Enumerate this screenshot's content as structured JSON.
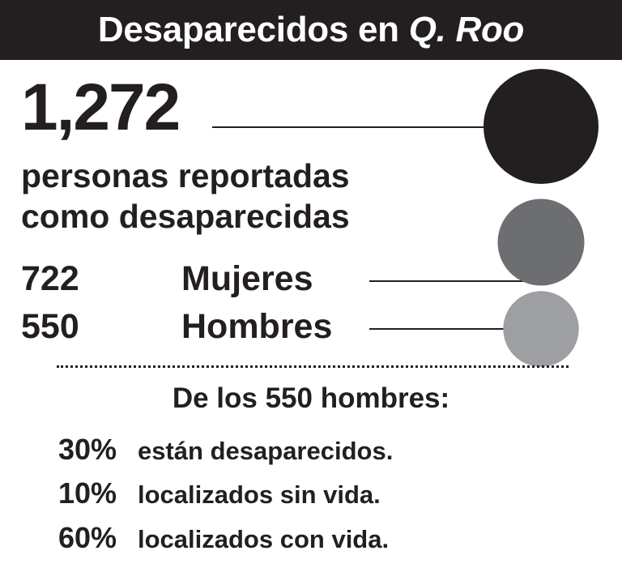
{
  "header": {
    "title_main": "Desaparecidos en",
    "title_italic": "Q. Roo"
  },
  "total": {
    "value": "1,272",
    "label_line1": "personas reportadas",
    "label_line2": "como desaparecidas"
  },
  "subtitle": "De los 550 hombres:",
  "stats": [
    {
      "pct": "30%",
      "desc": "están desaparecidos."
    },
    {
      "pct": "10%",
      "desc": "localizados sin vida."
    },
    {
      "pct": "60%",
      "desc": "localizados con vida."
    }
  ],
  "colors": {
    "dark": "#231f20",
    "mujeres": "#6d6e71",
    "hombres": "#9d9fa2",
    "background": "#ffffff"
  },
  "chart_data": {
    "type": "bubble",
    "title": "Desaparecidos en Q. Roo",
    "series": [
      {
        "name": "personas reportadas como desaparecidas",
        "value": 1272,
        "value_label": "1,272",
        "color": "#231f20"
      },
      {
        "name": "Mujeres",
        "value": 722,
        "value_label": "722",
        "color": "#6d6e71"
      },
      {
        "name": "Hombres",
        "value": 550,
        "value_label": "550",
        "color": "#9d9fa2"
      }
    ],
    "breakdown": {
      "title": "De los 550 hombres:",
      "categories": [
        "están desaparecidos.",
        "localizados sin vida.",
        "localizados con vida."
      ],
      "values": [
        30,
        10,
        60
      ],
      "unit": "%"
    }
  }
}
